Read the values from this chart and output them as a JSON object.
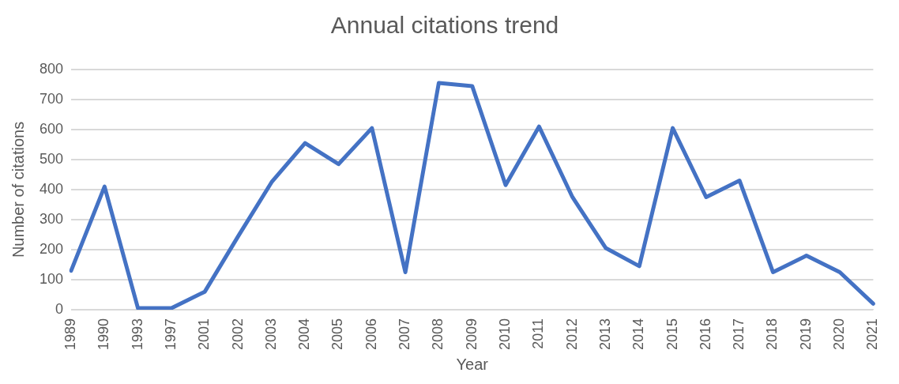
{
  "chart_data": {
    "type": "line",
    "title": "Annual citations trend",
    "xlabel": "Year",
    "ylabel": "Number of citations",
    "categories": [
      "1989",
      "1990",
      "1993",
      "1997",
      "2001",
      "2002",
      "2003",
      "2004",
      "2005",
      "2006",
      "2007",
      "2008",
      "2009",
      "2010",
      "2011",
      "2012",
      "2013",
      "2014",
      "2015",
      "2016",
      "2017",
      "2018",
      "2019",
      "2020",
      "2021"
    ],
    "series": [
      {
        "color": "#4472c4",
        "values": [
          130,
          410,
          5,
          5,
          60,
          245,
          425,
          555,
          485,
          605,
          125,
          755,
          745,
          415,
          610,
          375,
          205,
          145,
          605,
          375,
          430,
          125,
          180,
          125,
          20
        ]
      }
    ],
    "ylim": [
      0,
      800
    ],
    "yticks": [
      0,
      100,
      200,
      300,
      400,
      500,
      600,
      700,
      800
    ],
    "grid": "y",
    "legend": false,
    "marker": "none",
    "line_style": "solid"
  }
}
